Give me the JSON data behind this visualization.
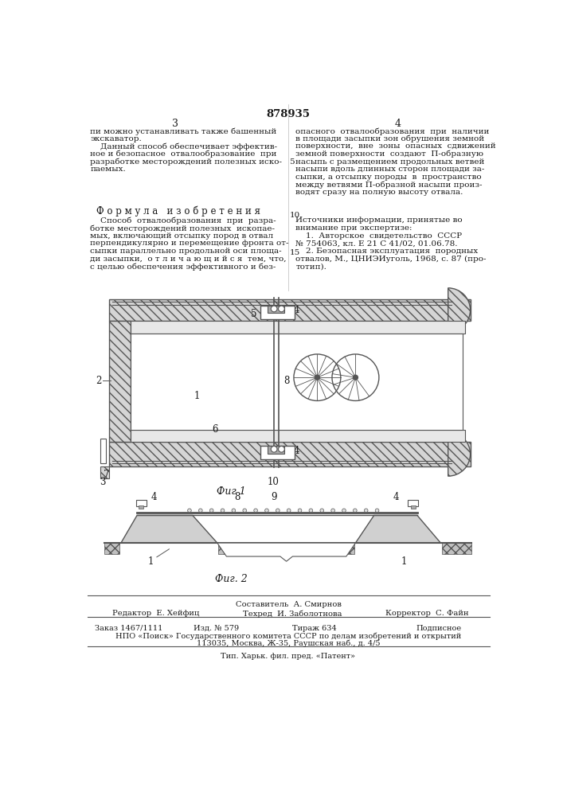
{
  "patent_number": "878935",
  "page_num_left": "3",
  "page_num_right": "4",
  "line_num_5": "5",
  "line_num_10": "10",
  "line_num_15": "15",
  "col1_lines": [
    "пи можно устанавливать также башенный",
    "экскаватор.",
    "    Данный способ обеспечивает эффектив-",
    "ное и безопасное  отвалообразование  при",
    "разработке месторождений полезных иско-",
    "паемых."
  ],
  "col2_lines": [
    "опасного  отвалообразования  при  наличии",
    "в площади засыпки зон обрушения земной",
    "поверхности,  вне  зоны  опасных  сдвижений",
    "земной поверхности  создают  П-образную",
    "насыпь с размещением продольных ветвей",
    "насыпи вдоль длинных сторон площади за-",
    "сыпки, а отсыпку породы  в  пространство",
    "между ветвями П-образной насыпи произ-",
    "водят сразу на полную высоту отвала."
  ],
  "formula_heading": "Ф о р м у л а   и з о б р е т е н и я",
  "formula_lines": [
    "    Способ  отвалообразования  при  разра-",
    "ботке месторождений полезных  ископае-",
    "мых, включающий отсыпку пород в отвал",
    "перпендикулярно и перемещение фронта от-",
    "сыпки параллельно продольной оси площа-",
    "ди засыпки,  о т л и ч а ю щ и й с я  тем, что,",
    "с целью обеспечения эффективного и без-"
  ],
  "sources_heading1": "Источники информации, принятые во",
  "sources_heading2": "внимание при экспертизе:",
  "source1a": "    1.  Авторское  свидетельство  СССР",
  "source1b": "№ 754063, кл. Е 21 С 41/02, 01.06.78.",
  "source2a": "    2. Безопасная эксплуатация  породных",
  "source2b": "отвалов, М., ЦНИЭИуголь, 1968, с. 87 (про-",
  "source2c": "тотип).",
  "fig1_label": "Фиг 1",
  "fig2_label": "Фиг. 2",
  "sostavitel": "Составитель  А. Смирнов",
  "redaktor": "Редактор  Е. Хейфиц",
  "tehred": "Техред  И. Заболотнова",
  "korrektor": "Корректор  С. Файн",
  "zakaz": "Заказ 1467/1111",
  "izd": "Изд. № 579",
  "tirazh": "Тираж 634",
  "podpisnoe": "Подписное",
  "npo": "НПО «Поиск» Государственного комитета СССР по делам изобретений и открытий",
  "address": "113035, Москва, Ж-35, Раушская наб., д. 4/5",
  "tip": "Тип. Харьк. фил. пред. «Патент»",
  "bg": "#ffffff",
  "fg": "#1a1a1a",
  "gray_dark": "#555555",
  "gray_med": "#888888",
  "gray_light": "#cccccc",
  "hatch_fill": "#d5d5d5"
}
